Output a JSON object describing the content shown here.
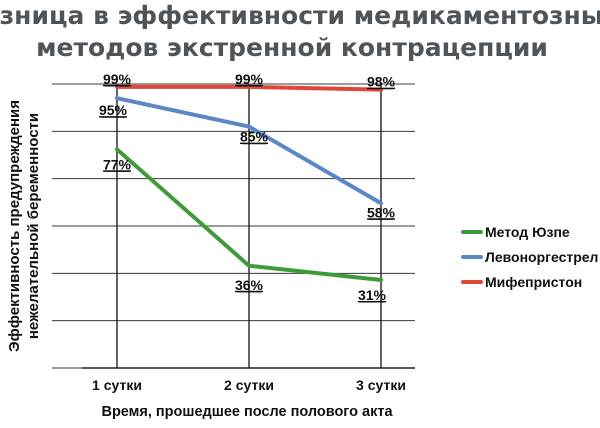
{
  "chart_data": {
    "type": "line",
    "title_lines": [
      "Разница в эффективности медикаментозных",
      "методов экстренной контрацепции"
    ],
    "xlabel": "Время, прошедшее после полового акта",
    "ylabel_lines": [
      "Эффективность  предупреждения",
      "нежелательной беременности"
    ],
    "categories": [
      "1 сутки",
      "2 сутки",
      "3 сутки"
    ],
    "ylim": [
      0,
      100
    ],
    "grid": true,
    "legend_position": "right",
    "series": [
      {
        "name": "Метод Юзпе",
        "color": "#3f9b3a",
        "values": [
          77,
          36,
          31
        ],
        "labels": [
          "77%",
          "36%",
          "31%"
        ]
      },
      {
        "name": "Левоноргестрел",
        "color": "#5b87c6",
        "values": [
          95,
          85,
          58
        ],
        "labels": [
          "95%",
          "85%",
          "58%"
        ]
      },
      {
        "name": "Мифепристон",
        "color": "#e0463a",
        "values": [
          99,
          99,
          98
        ],
        "labels": [
          "99%",
          "99%",
          "98%"
        ]
      }
    ]
  }
}
